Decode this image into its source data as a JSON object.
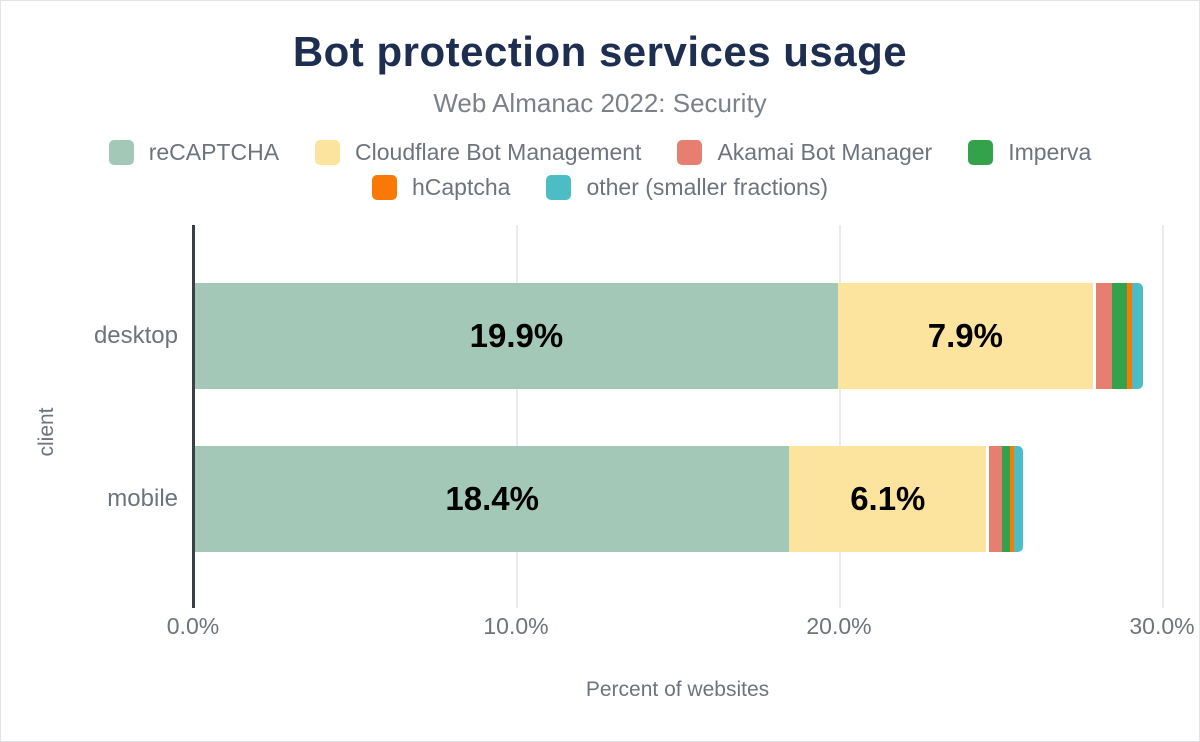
{
  "chart_data": {
    "type": "bar",
    "orientation": "horizontal",
    "stacked": true,
    "title": "Bot protection services usage",
    "subtitle": "Web Almanac 2022: Security",
    "xlabel": "Percent of websites",
    "ylabel": "client",
    "categories": [
      "desktop",
      "mobile"
    ],
    "series": [
      {
        "name": "reCAPTCHA",
        "color": "#a4c8b7",
        "values": [
          19.9,
          18.4
        ],
        "labels": [
          "19.9%",
          "18.4%"
        ]
      },
      {
        "name": "Cloudflare Bot Management",
        "color": "#fde49e",
        "values": [
          7.9,
          6.1
        ],
        "labels": [
          "7.9%",
          "6.1%"
        ]
      },
      {
        "name": "Akamai Bot Manager",
        "color": "#e77e72",
        "values": [
          0.6,
          0.5
        ]
      },
      {
        "name": "Imperva",
        "color": "#34a24b",
        "values": [
          0.45,
          0.25
        ]
      },
      {
        "name": "hCaptcha",
        "color": "#f87905",
        "values": [
          0.15,
          0.12
        ]
      },
      {
        "name": "other (smaller fractions)",
        "color": "#4cbdc5",
        "values": [
          0.34,
          0.28
        ]
      }
    ],
    "x_ticks": [
      "0.0%",
      "10.0%",
      "20.0%",
      "30.0%"
    ],
    "x_tick_values": [
      0,
      10,
      20,
      30
    ],
    "xlim": [
      0,
      30
    ],
    "grid": "vertical",
    "legend_position": "top",
    "theme": {
      "title_color": "#1d2e50",
      "muted_text_color": "#6e747b",
      "axis_line_color": "#3b4046",
      "gridline_color": "#e9ebed",
      "value_label_color": "#000000",
      "background": "#ffffff"
    }
  }
}
